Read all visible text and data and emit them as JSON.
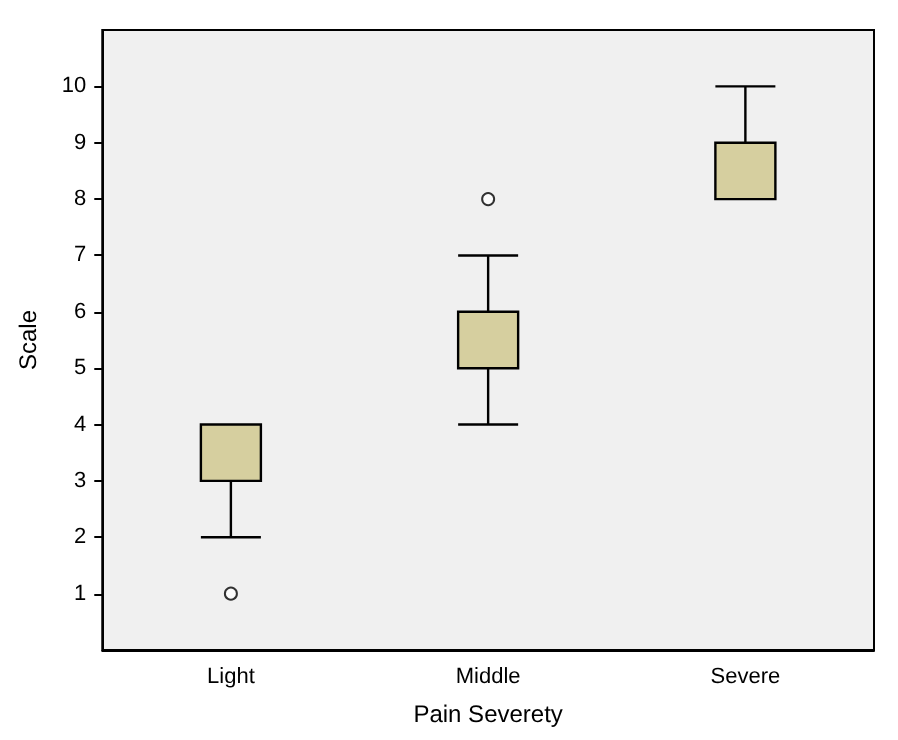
{
  "chart_data": {
    "type": "box",
    "xlabel": "Pain Severety",
    "ylabel": "Scale",
    "categories": [
      "Light",
      "Middle",
      "Severe"
    ],
    "boxes": [
      {
        "low": 2,
        "q1": 3,
        "median": 4,
        "q3": 4,
        "high": 4,
        "outliers": [
          1
        ]
      },
      {
        "low": 4,
        "q1": 5,
        "median": 6,
        "q3": 6,
        "high": 7,
        "outliers": [
          8
        ]
      },
      {
        "low": 8,
        "q1": 8,
        "median": 9,
        "q3": 9,
        "high": 10
      }
    ],
    "color": "#d6cf9f",
    "ylim": [
      0,
      11
    ],
    "yticks": [
      1,
      2,
      3,
      4,
      5,
      6,
      7,
      8,
      9,
      10
    ],
    "grid": false,
    "marker": "circle"
  }
}
